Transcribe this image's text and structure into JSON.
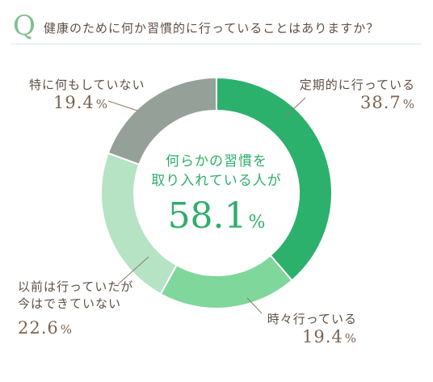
{
  "header": {
    "q_mark": "Q",
    "question": "健康のために何か習慣的に行っていることはありますか？"
  },
  "center": {
    "line1": "何らかの習慣を",
    "line2": "取り入れている人が",
    "value": "58.1",
    "unit": "%"
  },
  "chart_data": {
    "type": "pie",
    "style": "donut",
    "title": "",
    "slices": [
      {
        "label": "定期的に行っている",
        "value": 38.7,
        "display": "38.7",
        "color": "#2bb16c"
      },
      {
        "label": "時々行っている",
        "value": 19.4,
        "display": "19.4",
        "color": "#7fd79b"
      },
      {
        "label": "以前は行っていたが今はできていない",
        "label_lines": [
          "以前は行っていたが",
          "今はできていない"
        ],
        "value": 22.6,
        "display": "22.6",
        "color": "#b5e3c4"
      },
      {
        "label": "特に何もしていない",
        "value": 19.4,
        "display": "19.4",
        "color": "#95a198"
      }
    ],
    "unit": "%"
  }
}
